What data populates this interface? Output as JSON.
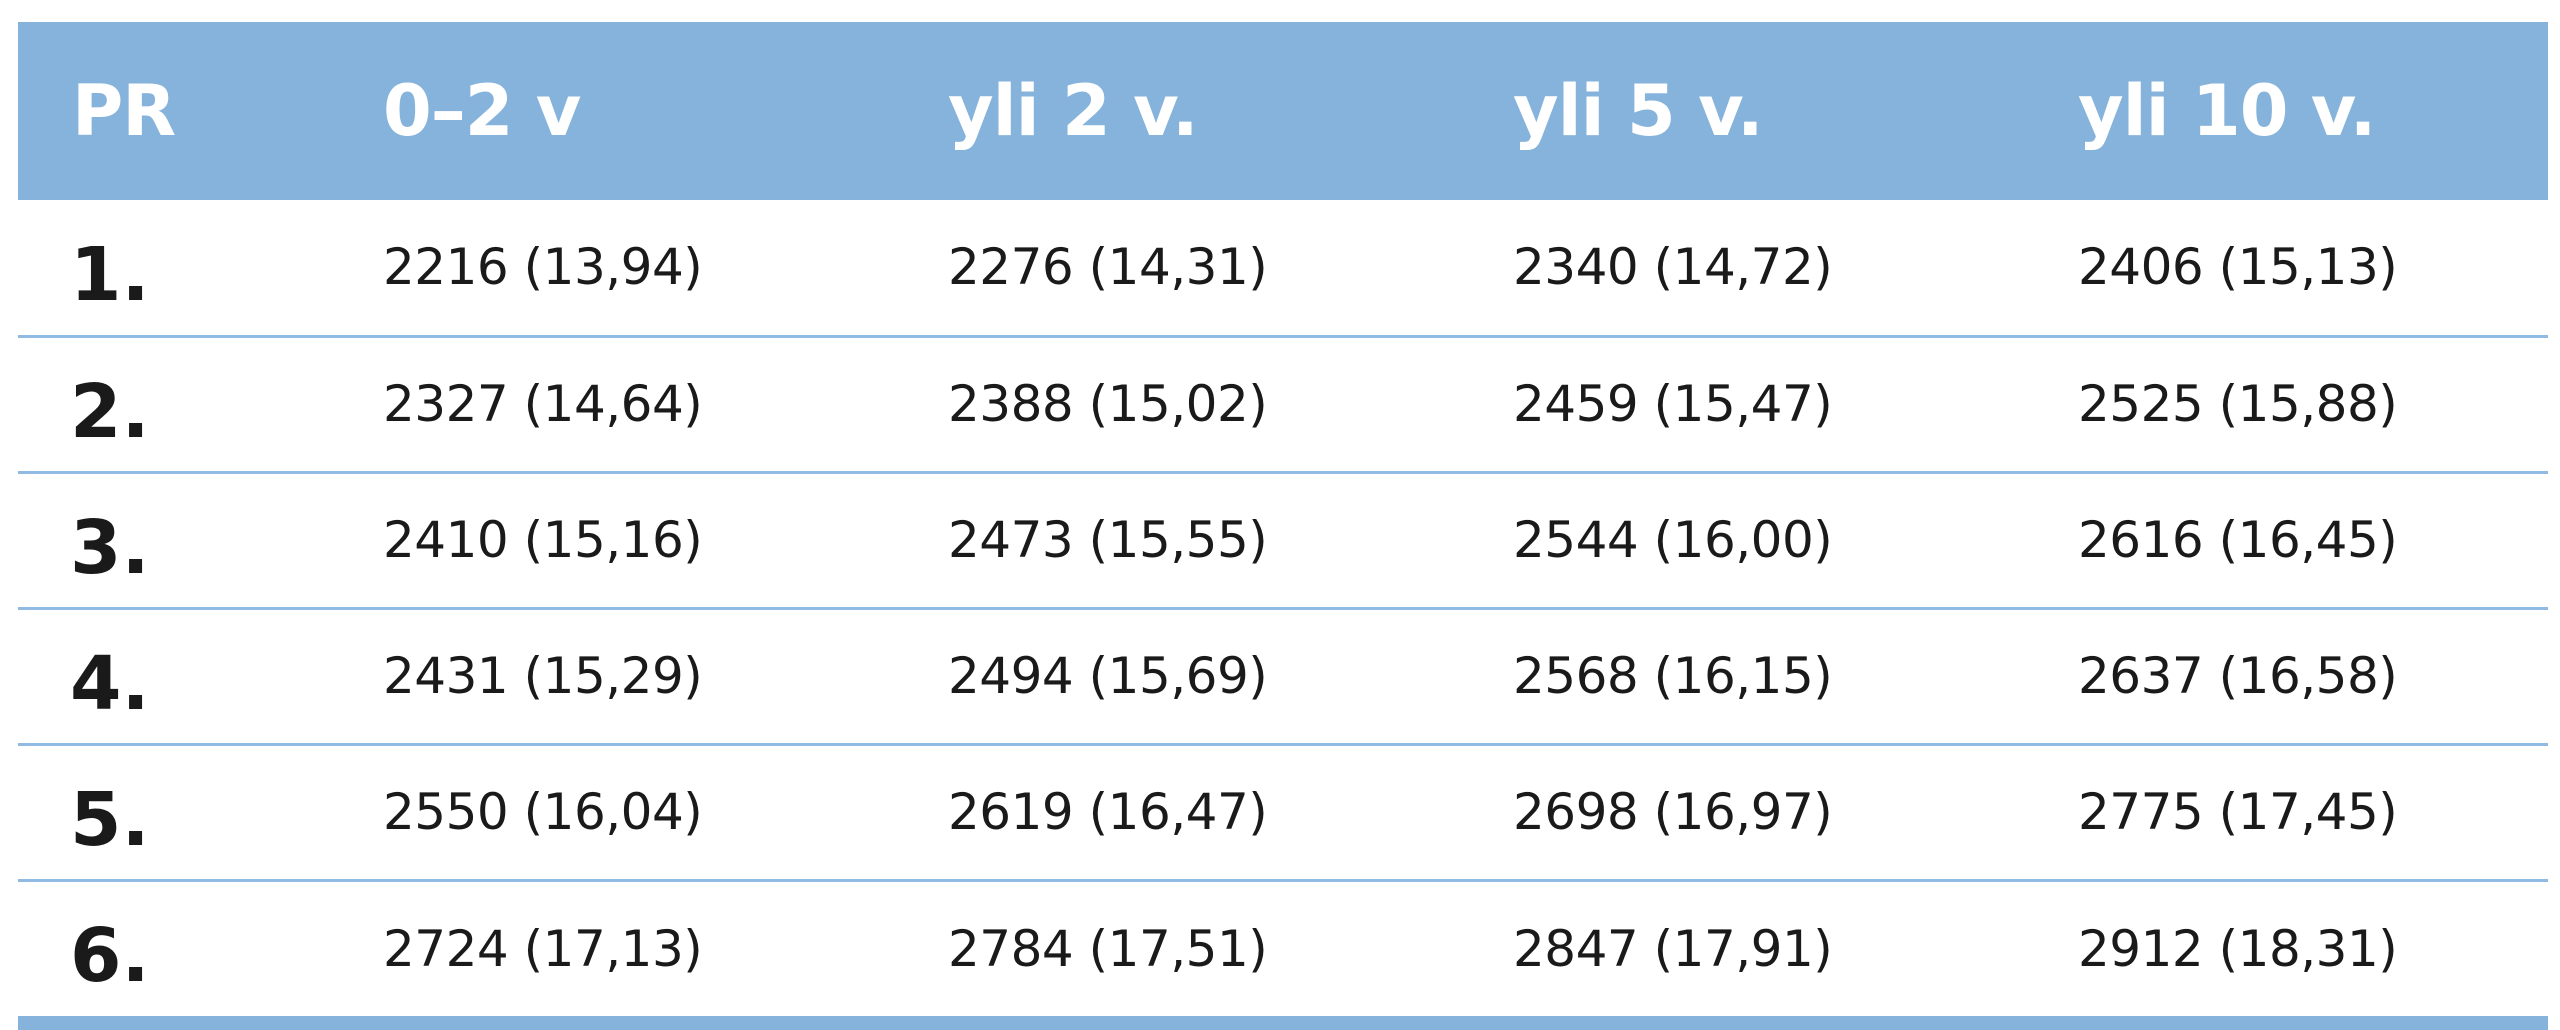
{
  "table": {
    "headers": [
      "PR",
      "0–2 v",
      "yli 2 v.",
      "yli 5 v.",
      "yli 10 v."
    ],
    "rows": [
      {
        "rank": "1.",
        "cells": [
          "2216 (13,94)",
          "2276 (14,31)",
          "2340 (14,72)",
          "2406 (15,13)"
        ]
      },
      {
        "rank": "2.",
        "cells": [
          "2327 (14,64)",
          "2388 (15,02)",
          "2459 (15,47)",
          "2525 (15,88)"
        ]
      },
      {
        "rank": "3.",
        "cells": [
          "2410 (15,16)",
          "2473 (15,55)",
          "2544 (16,00)",
          "2616 (16,45)"
        ]
      },
      {
        "rank": "4.",
        "cells": [
          "2431 (15,29)",
          "2494 (15,69)",
          "2568 (16,15)",
          "2637 (16,58)"
        ]
      },
      {
        "rank": "5.",
        "cells": [
          "2550 (16,04)",
          "2619 (16,47)",
          "2698 (16,97)",
          "2775 (17,45)"
        ]
      },
      {
        "rank": "6.",
        "cells": [
          "2724 (17,13)",
          "2784 (17,51)",
          "2847 (17,91)",
          "2912 (18,31)"
        ]
      }
    ]
  },
  "colors": {
    "header_background": "#86b3db",
    "header_text": "#ffffff",
    "row_divider": "#8fbbe3",
    "body_text": "#1a1a1a"
  }
}
